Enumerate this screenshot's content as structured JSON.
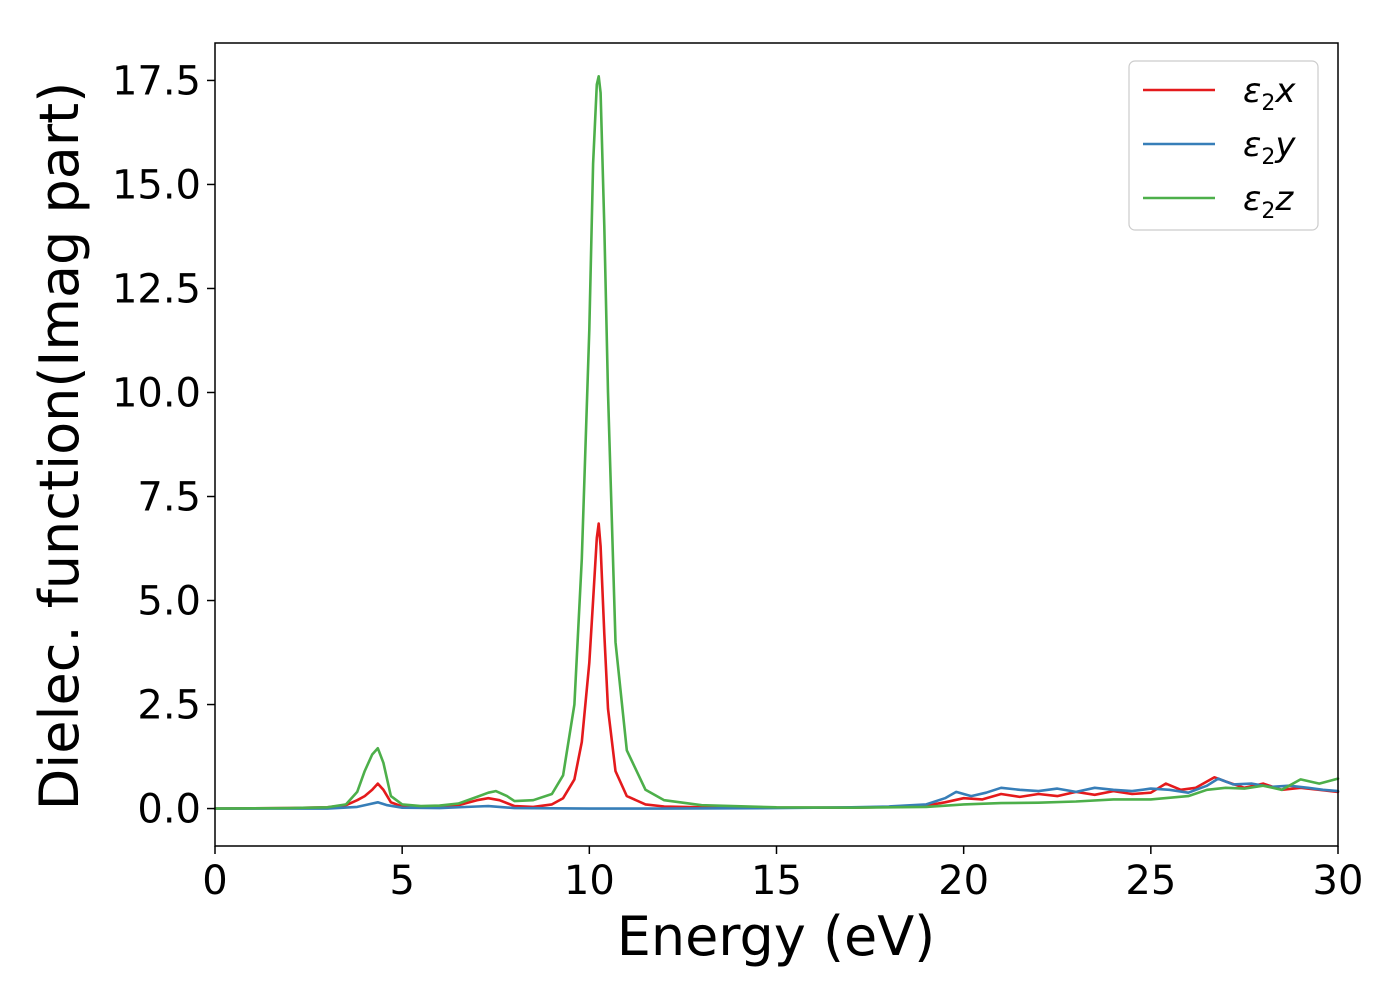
{
  "chart_data": {
    "type": "line",
    "title": "",
    "xlabel": "Energy (eV)",
    "ylabel": "Dielec. function(Imag part)",
    "xlim": [
      0,
      30
    ],
    "ylim": [
      -0.9,
      18.4
    ],
    "xticks": [
      0,
      5,
      10,
      15,
      20,
      25,
      30
    ],
    "xtick_labels": [
      "0",
      "5",
      "10",
      "15",
      "20",
      "25",
      "30"
    ],
    "yticks": [
      0.0,
      2.5,
      5.0,
      7.5,
      10.0,
      12.5,
      15.0,
      17.5
    ],
    "ytick_labels": [
      "0.0",
      "2.5",
      "5.0",
      "7.5",
      "10.0",
      "12.5",
      "15.0",
      "17.5"
    ],
    "grid": false,
    "legend_position": "top-right",
    "series": [
      {
        "name": "ε₂x",
        "legend_main": "ε",
        "legend_sub": "2",
        "legend_tail": "x",
        "color": "#e41a1c",
        "x": [
          0,
          2,
          3,
          3.5,
          3.8,
          4.0,
          4.2,
          4.35,
          4.5,
          4.7,
          5.0,
          5.5,
          6.0,
          6.5,
          7.0,
          7.3,
          7.6,
          8.0,
          8.5,
          9.0,
          9.3,
          9.6,
          9.8,
          10.0,
          10.1,
          10.2,
          10.25,
          10.3,
          10.4,
          10.5,
          10.7,
          11.0,
          11.5,
          12.0,
          13.0,
          15.0,
          17.0,
          18.0,
          19.0,
          19.5,
          20.0,
          20.5,
          21.0,
          21.5,
          22.0,
          22.5,
          23.0,
          23.5,
          24.0,
          24.5,
          25.0,
          25.4,
          25.8,
          26.2,
          26.7,
          27.0,
          27.5,
          28.0,
          28.5,
          29.0,
          29.5,
          30.0
        ],
        "y": [
          0.0,
          0.01,
          0.03,
          0.08,
          0.2,
          0.3,
          0.45,
          0.6,
          0.45,
          0.15,
          0.05,
          0.04,
          0.05,
          0.08,
          0.2,
          0.25,
          0.2,
          0.06,
          0.04,
          0.1,
          0.25,
          0.7,
          1.6,
          3.5,
          5.0,
          6.5,
          6.85,
          6.3,
          4.2,
          2.4,
          0.9,
          0.3,
          0.1,
          0.05,
          0.03,
          0.02,
          0.02,
          0.04,
          0.07,
          0.15,
          0.25,
          0.22,
          0.35,
          0.28,
          0.35,
          0.3,
          0.4,
          0.33,
          0.42,
          0.35,
          0.38,
          0.6,
          0.45,
          0.5,
          0.75,
          0.65,
          0.5,
          0.6,
          0.45,
          0.5,
          0.45,
          0.4
        ]
      },
      {
        "name": "ε₂y",
        "legend_main": "ε",
        "legend_sub": "2",
        "legend_tail": "y",
        "color": "#377eb8",
        "x": [
          0,
          3,
          3.8,
          4.1,
          4.35,
          4.6,
          5.0,
          6.0,
          7.0,
          7.3,
          7.6,
          8.0,
          10.0,
          12.0,
          15.0,
          17.0,
          18.0,
          19.0,
          19.5,
          19.8,
          20.2,
          20.6,
          21.0,
          21.5,
          22.0,
          22.5,
          23.0,
          23.5,
          24.0,
          24.5,
          25.0,
          25.5,
          26.0,
          26.5,
          26.8,
          27.2,
          27.7,
          28.2,
          28.7,
          29.2,
          29.6,
          30.0
        ],
        "y": [
          0.0,
          0.0,
          0.04,
          0.1,
          0.15,
          0.08,
          0.02,
          0.01,
          0.05,
          0.06,
          0.04,
          0.01,
          0.0,
          0.0,
          0.01,
          0.03,
          0.05,
          0.1,
          0.25,
          0.4,
          0.3,
          0.38,
          0.5,
          0.45,
          0.42,
          0.48,
          0.4,
          0.5,
          0.45,
          0.42,
          0.48,
          0.45,
          0.38,
          0.55,
          0.72,
          0.58,
          0.6,
          0.52,
          0.55,
          0.5,
          0.45,
          0.42
        ]
      },
      {
        "name": "ε₂z",
        "legend_main": "ε",
        "legend_sub": "2",
        "legend_tail": "z",
        "color": "#4daf4a",
        "x": [
          0,
          2,
          3,
          3.5,
          3.8,
          4.0,
          4.2,
          4.35,
          4.5,
          4.7,
          5.0,
          5.5,
          6.0,
          6.5,
          7.0,
          7.3,
          7.5,
          7.8,
          8.0,
          8.5,
          9.0,
          9.3,
          9.6,
          9.8,
          10.0,
          10.1,
          10.2,
          10.25,
          10.3,
          10.4,
          10.5,
          10.7,
          11.0,
          11.5,
          12.0,
          13.0,
          15.0,
          17.0,
          19.0,
          20.0,
          21.0,
          22.0,
          23.0,
          24.0,
          25.0,
          26.0,
          26.5,
          27.0,
          27.5,
          28.0,
          28.5,
          29.0,
          29.5,
          30.0
        ],
        "y": [
          0.0,
          0.01,
          0.03,
          0.1,
          0.4,
          0.9,
          1.3,
          1.45,
          1.1,
          0.3,
          0.1,
          0.06,
          0.07,
          0.12,
          0.28,
          0.38,
          0.42,
          0.3,
          0.18,
          0.2,
          0.35,
          0.8,
          2.5,
          6.0,
          11.5,
          15.5,
          17.4,
          17.6,
          17.2,
          14.0,
          10.0,
          4.0,
          1.4,
          0.45,
          0.2,
          0.08,
          0.03,
          0.02,
          0.04,
          0.1,
          0.13,
          0.14,
          0.17,
          0.22,
          0.22,
          0.3,
          0.45,
          0.5,
          0.48,
          0.55,
          0.45,
          0.7,
          0.6,
          0.72
        ]
      }
    ]
  }
}
